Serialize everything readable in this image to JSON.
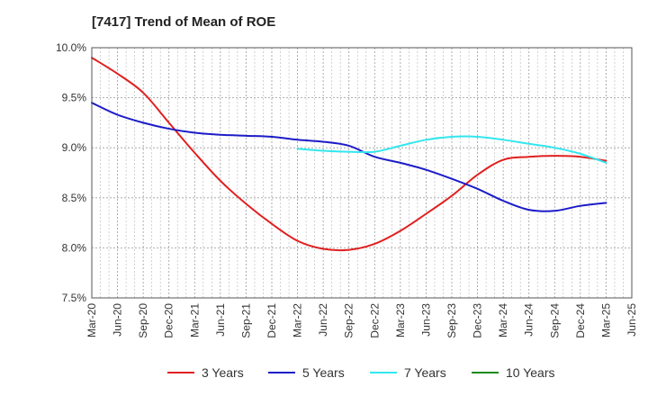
{
  "chart_data": {
    "type": "line",
    "title": "[7417]  Trend of Mean of ROE",
    "xlabel": "",
    "ylabel": "",
    "ylim": [
      7.5,
      10.0
    ],
    "y_ticks": [
      7.5,
      8.0,
      8.5,
      9.0,
      9.5,
      10.0
    ],
    "y_tick_labels": [
      "7.5%",
      "8.0%",
      "8.5%",
      "9.0%",
      "9.5%",
      "10.0%"
    ],
    "x_tick_labels": [
      "Mar-20",
      "Jun-20",
      "Sep-20",
      "Dec-20",
      "Mar-21",
      "Jun-21",
      "Sep-21",
      "Dec-21",
      "Mar-22",
      "Jun-22",
      "Sep-22",
      "Dec-22",
      "Mar-23",
      "Jun-23",
      "Sep-23",
      "Dec-23",
      "Mar-24",
      "Jun-24",
      "Sep-24",
      "Dec-24",
      "Mar-25",
      "Jun-25"
    ],
    "grid": true,
    "legend_position": "bottom",
    "series": [
      {
        "name": "3 Years",
        "color": "#e02020",
        "x": [
          "Mar-20",
          "Jun-20",
          "Sep-20",
          "Dec-20",
          "Mar-21",
          "Jun-21",
          "Sep-21",
          "Dec-21",
          "Mar-22",
          "Jun-22",
          "Sep-22",
          "Dec-22",
          "Mar-23",
          "Jun-23",
          "Sep-23",
          "Dec-23",
          "Mar-24",
          "Jun-24",
          "Sep-24",
          "Dec-24",
          "Mar-25"
        ],
        "values": [
          9.9,
          9.74,
          9.55,
          9.25,
          8.95,
          8.67,
          8.44,
          8.24,
          8.07,
          7.99,
          7.98,
          8.04,
          8.17,
          8.34,
          8.52,
          8.73,
          8.88,
          8.91,
          8.92,
          8.91,
          8.87
        ]
      },
      {
        "name": "5 Years",
        "color": "#1c1cc8",
        "x": [
          "Mar-20",
          "Jun-20",
          "Sep-20",
          "Dec-20",
          "Mar-21",
          "Jun-21",
          "Sep-21",
          "Dec-21",
          "Mar-22",
          "Jun-22",
          "Sep-22",
          "Dec-22",
          "Mar-23",
          "Jun-23",
          "Sep-23",
          "Dec-23",
          "Mar-24",
          "Jun-24",
          "Sep-24",
          "Dec-24",
          "Mar-25"
        ],
        "values": [
          9.45,
          9.33,
          9.25,
          9.19,
          9.15,
          9.13,
          9.12,
          9.11,
          9.08,
          9.06,
          9.02,
          8.91,
          8.85,
          8.78,
          8.69,
          8.59,
          8.47,
          8.38,
          8.37,
          8.42,
          8.45
        ]
      },
      {
        "name": "7 Years",
        "color": "#33e6ee",
        "x": [
          "Mar-22",
          "Jun-22",
          "Sep-22",
          "Dec-22",
          "Mar-23",
          "Jun-23",
          "Sep-23",
          "Dec-23",
          "Mar-24",
          "Jun-24",
          "Sep-24",
          "Dec-24",
          "Mar-25"
        ],
        "values": [
          8.99,
          8.97,
          8.96,
          8.96,
          9.02,
          9.08,
          9.11,
          9.11,
          9.08,
          9.04,
          9.0,
          8.94,
          8.85
        ]
      },
      {
        "name": "10 Years",
        "color": "#1a8a1a",
        "x": [],
        "values": []
      }
    ]
  }
}
